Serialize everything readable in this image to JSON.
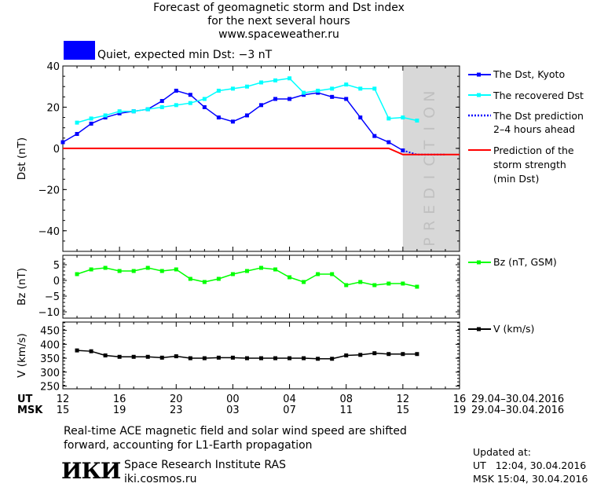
{
  "header": {
    "title_lines": [
      "Forecast of geomagnetic storm and Dst index",
      "for the next several hours",
      "www.spaceweather.ru"
    ],
    "status": "Quiet, expected min Dst: −3 nT",
    "status_color": "#0000ff"
  },
  "legend": {
    "dst_kyoto": "The Dst, Kyoto",
    "dst_recovered": "The recovered Dst",
    "dst_prediction_lines": [
      "The Dst prediction",
      "2–4 hours ahead"
    ],
    "storm_lines": [
      "Prediction of the",
      "storm strength",
      "(min Dst)"
    ],
    "bz": "Bz (nT, GSM)",
    "v": "V (km/s)"
  },
  "prediction_label": "PREDICTION",
  "time_axis": {
    "ut_label": "UT",
    "msk_label": "MSK",
    "ut_ticks": [
      "12",
      "16",
      "20",
      "00",
      "04",
      "08",
      "12",
      "16"
    ],
    "msk_ticks": [
      "15",
      "19",
      "23",
      "03",
      "07",
      "11",
      "15",
      "19"
    ],
    "ut_range": "29.04–30.04.2016",
    "msk_range": "29.04–30.04.2016"
  },
  "footer": {
    "note_lines": [
      "Real-time ACE magnetic field and solar wind speed are shifted",
      "forward, accounting for L1-Earth propagation"
    ],
    "logo_text": "ИКИ",
    "institute": "Space Research Institute RAS",
    "site": "iki.cosmos.ru",
    "updated_label": "Updated at:",
    "updated_ut": "UT   12:04, 30.04.2016",
    "updated_msk": "MSK 15:04, 30.04.2016"
  },
  "chart_data": [
    {
      "type": "line",
      "ylabel": "Dst (nT)",
      "x_unit": "hours from 12 UT 29.04.2016",
      "xlim": [
        0,
        28
      ],
      "ylim": [
        -50,
        40
      ],
      "yticks": [
        40,
        20,
        0,
        -20,
        -40
      ],
      "prediction_region": [
        24,
        28
      ],
      "series": [
        {
          "name": "The Dst, Kyoto",
          "color": "#0000ff",
          "x": [
            0,
            1,
            2,
            3,
            4,
            5,
            6,
            7,
            8,
            9,
            10,
            11,
            12,
            13,
            14,
            15,
            16,
            17,
            18,
            19,
            20,
            21,
            22,
            23,
            24
          ],
          "y": [
            3,
            7,
            12,
            15,
            17,
            18,
            19,
            23,
            28,
            26,
            20,
            15,
            13,
            16,
            21,
            24,
            24,
            26,
            27,
            25,
            24,
            15,
            6,
            3,
            -1
          ]
        },
        {
          "name": "The recovered Dst",
          "color": "#00ffff",
          "x": [
            1,
            2,
            3,
            4,
            5,
            6,
            7,
            8,
            9,
            10,
            11,
            12,
            13,
            14,
            15,
            16,
            17,
            18,
            19,
            20,
            21,
            22,
            23,
            24,
            25
          ],
          "y": [
            12.5,
            14.5,
            16,
            18,
            18,
            19,
            20,
            21,
            22,
            24,
            28,
            29,
            30,
            32,
            33,
            34,
            27,
            28,
            29,
            31,
            29,
            29,
            14.5,
            15,
            13.5
          ]
        },
        {
          "name": "The Dst prediction 2–4 hours ahead",
          "color": "#0000ff",
          "x": [
            24,
            25,
            26,
            27
          ],
          "y": [
            -1,
            -3,
            -3,
            -3
          ]
        },
        {
          "name": "Prediction of the storm strength (min Dst)",
          "color": "#ff0000",
          "x": [
            0,
            23,
            24,
            28
          ],
          "y": [
            0,
            0,
            -3,
            -3
          ]
        }
      ]
    },
    {
      "type": "line",
      "ylabel": "Bz (nT)",
      "xlim": [
        0,
        28
      ],
      "ylim": [
        -12,
        8
      ],
      "yticks": [
        5,
        0,
        -5,
        -10
      ],
      "series": [
        {
          "name": "Bz (nT, GSM)",
          "color": "#00ff00",
          "x": [
            1,
            2,
            3,
            4,
            5,
            6,
            7,
            8,
            9,
            10,
            11,
            12,
            13,
            14,
            15,
            16,
            17,
            18,
            19,
            20,
            21,
            22,
            23,
            24,
            25
          ],
          "y": [
            2,
            3.5,
            4,
            3,
            3,
            4,
            3,
            3.5,
            0.5,
            -0.5,
            0.5,
            2,
            3,
            4,
            3.5,
            1,
            -0.5,
            2,
            2,
            -1.5,
            -0.5,
            -1.5,
            -1,
            -1,
            -2
          ]
        }
      ]
    },
    {
      "type": "line",
      "ylabel": "V (km/s)",
      "xlim": [
        0,
        28
      ],
      "ylim": [
        240,
        480
      ],
      "yticks": [
        450,
        400,
        350,
        300,
        250
      ],
      "series": [
        {
          "name": "V (km/s)",
          "color": "#000000",
          "x": [
            1,
            2,
            3,
            4,
            5,
            6,
            7,
            8,
            9,
            10,
            11,
            12,
            13,
            14,
            15,
            16,
            17,
            18,
            19,
            20,
            21,
            22,
            23,
            24,
            25
          ],
          "y": [
            378,
            375,
            360,
            355,
            355,
            355,
            352,
            357,
            350,
            350,
            352,
            352,
            350,
            350,
            350,
            350,
            350,
            348,
            348,
            360,
            362,
            368,
            365,
            365,
            365
          ]
        }
      ]
    }
  ]
}
